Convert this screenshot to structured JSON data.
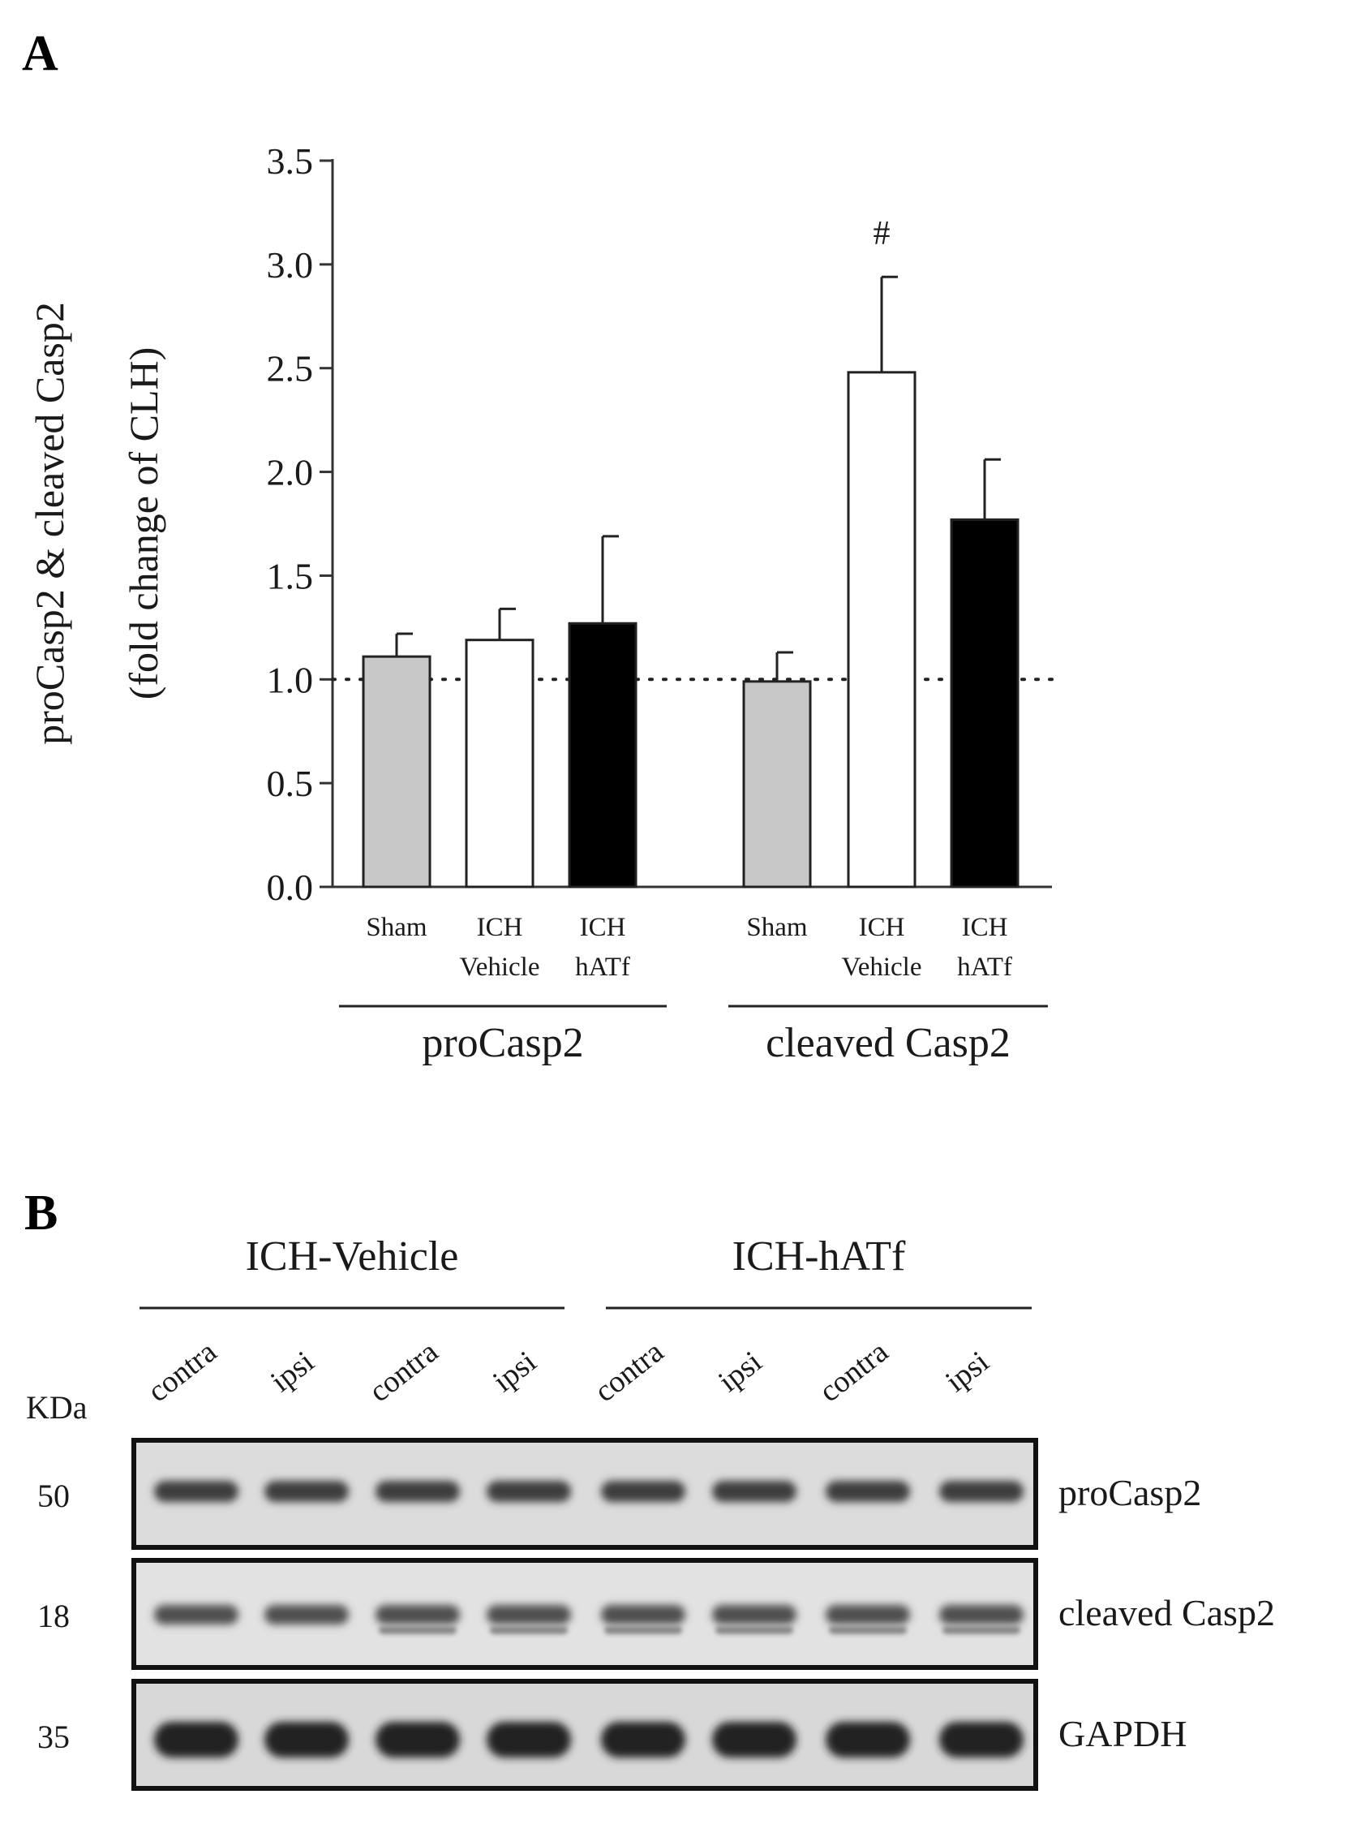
{
  "panel_a": {
    "letter": "A",
    "chart_data": {
      "type": "bar",
      "ylabel_line1": "proCasp2 & cleaved Casp2",
      "ylabel_line2": "(fold change of CLH)",
      "ylim": [
        0,
        3.5
      ],
      "yticks": [
        "0.0",
        "0.5",
        "1.0",
        "1.5",
        "2.0",
        "2.5",
        "3.0",
        "3.5"
      ],
      "reference_line": 1.0,
      "groups": [
        {
          "name": "proCasp2",
          "bars": [
            {
              "label_lines": [
                "Sham"
              ],
              "value": 1.11,
              "error": 0.11,
              "color": "#c8c8c8",
              "annotation": ""
            },
            {
              "label_lines": [
                "ICH",
                "Vehicle"
              ],
              "value": 1.19,
              "error": 0.15,
              "color": "#ffffff",
              "annotation": ""
            },
            {
              "label_lines": [
                "ICH",
                "hATf"
              ],
              "value": 1.27,
              "error": 0.42,
              "color": "#000000",
              "annotation": ""
            }
          ]
        },
        {
          "name": "cleaved Casp2",
          "bars": [
            {
              "label_lines": [
                "Sham"
              ],
              "value": 0.99,
              "error": 0.14,
              "color": "#c8c8c8",
              "annotation": ""
            },
            {
              "label_lines": [
                "ICH",
                "Vehicle"
              ],
              "value": 2.48,
              "error": 0.46,
              "color": "#ffffff",
              "annotation": "#"
            },
            {
              "label_lines": [
                "ICH",
                "hATf"
              ],
              "value": 1.77,
              "error": 0.29,
              "color": "#000000",
              "annotation": ""
            }
          ]
        }
      ]
    }
  },
  "panel_b": {
    "letter": "B",
    "groups": [
      "ICH-Vehicle",
      "ICH-hATf"
    ],
    "lanes": [
      "contra",
      "ipsi",
      "contra",
      "ipsi",
      "contra",
      "ipsi",
      "contra",
      "ipsi"
    ],
    "kda_header": "KDa",
    "blots": [
      {
        "kda": "50",
        "label": "proCasp2"
      },
      {
        "kda": "18",
        "label": "cleaved Casp2"
      },
      {
        "kda": "35",
        "label": "GAPDH"
      }
    ]
  }
}
